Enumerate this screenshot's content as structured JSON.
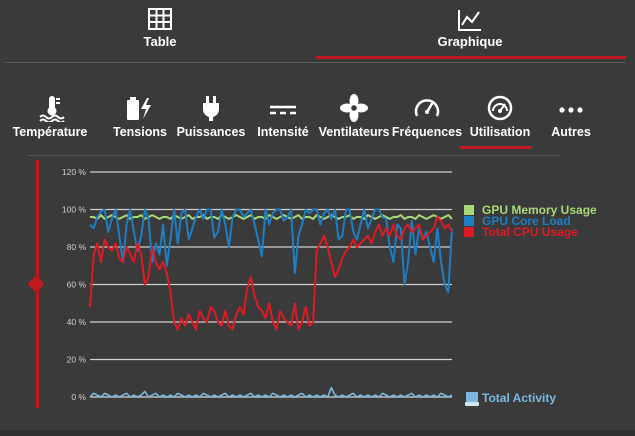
{
  "top_tabs": [
    {
      "label": "Table",
      "icon": "table-icon"
    },
    {
      "label": "Graphique",
      "icon": "chart-line-icon"
    }
  ],
  "active_top_tab": "Graphique",
  "categories": [
    {
      "label": "Température",
      "icon": "thermometer-icon"
    },
    {
      "label": "Tensions",
      "icon": "battery-bolt-icon"
    },
    {
      "label": "Puissances",
      "icon": "plug-icon"
    },
    {
      "label": "Intensité",
      "icon": "current-icon"
    },
    {
      "label": "Ventilateurs",
      "icon": "fan-icon"
    },
    {
      "label": "Fréquences",
      "icon": "gauge-icon"
    },
    {
      "label": "Utilisation",
      "icon": "speedometer-icon"
    },
    {
      "label": "Autres",
      "icon": "more-icon"
    }
  ],
  "active_category": "Utilisation",
  "colors": {
    "accent": "#c0181f",
    "gpu_memory": "#a8d877",
    "gpu_core": "#1f7dc2",
    "cpu_total": "#dd1b26",
    "activity": "#7ab8de"
  },
  "chart_data": {
    "type": "line",
    "y_ticks": [
      "120 %",
      "100 %",
      "80 %",
      "60 %",
      "40 %",
      "20 %",
      "0 %"
    ],
    "ylim": [
      0,
      120
    ],
    "grid": true,
    "legend_position": "right",
    "series": [
      {
        "name": "GPU Memory Usage",
        "color": "#a8d877",
        "values": [
          96,
          96,
          95,
          97,
          95,
          96,
          97,
          96,
          95,
          96,
          97,
          95,
          96,
          96,
          97,
          95,
          96,
          97,
          96,
          95,
          96,
          96,
          95,
          97,
          96,
          95,
          96,
          97,
          95,
          96,
          96,
          97,
          95,
          96,
          96,
          95,
          97,
          96,
          95,
          96,
          97,
          96,
          95,
          96,
          97,
          95,
          96,
          96,
          95,
          97,
          96,
          95,
          96,
          97,
          96,
          95,
          96,
          97,
          95,
          96,
          96,
          95,
          97,
          96,
          95,
          96,
          97,
          96,
          95,
          96,
          96,
          97,
          95,
          96,
          96,
          95,
          97,
          96,
          95,
          96,
          97,
          96,
          95,
          96,
          96,
          97,
          95,
          96,
          96,
          95,
          97,
          96,
          95,
          96,
          97,
          96,
          95,
          96,
          97,
          95
        ]
      },
      {
        "name": "GPU Core Load",
        "color": "#1f7dc2",
        "values": [
          92,
          90,
          96,
          99,
          100,
          88,
          95,
          100,
          86,
          72,
          92,
          100,
          88,
          78,
          86,
          100,
          95,
          72,
          82,
          76,
          92,
          70,
          84,
          100,
          82,
          98,
          100,
          84,
          90,
          96,
          100,
          95,
          100,
          100,
          85,
          88,
          100,
          92,
          80,
          96,
          100,
          100,
          96,
          98,
          100,
          92,
          84,
          75,
          100,
          92,
          98,
          100,
          100,
          94,
          96,
          100,
          66,
          86,
          92,
          100,
          98,
          100,
          100,
          92,
          98,
          100,
          95,
          100,
          84,
          86,
          100,
          100,
          88,
          84,
          92,
          100,
          90,
          95,
          100,
          100,
          96,
          95,
          80,
          72,
          92,
          90,
          60,
          72,
          94,
          76,
          90,
          84,
          88,
          80,
          72,
          90,
          72,
          60,
          56,
          90
        ]
      },
      {
        "name": "Total CPU Usage",
        "color": "#dd1b26",
        "values": [
          48,
          76,
          82,
          72,
          84,
          80,
          78,
          82,
          74,
          72,
          80,
          76,
          72,
          82,
          76,
          60,
          64,
          80,
          72,
          68,
          72,
          66,
          56,
          40,
          36,
          42,
          38,
          44,
          40,
          36,
          46,
          42,
          40,
          48,
          46,
          40,
          38,
          46,
          38,
          36,
          44,
          48,
          44,
          58,
          64,
          54,
          48,
          46,
          42,
          50,
          40,
          36,
          46,
          42,
          40,
          38,
          50,
          36,
          40,
          48,
          38,
          40,
          78,
          82,
          86,
          80,
          72,
          64,
          68,
          74,
          78,
          80,
          84,
          80,
          82,
          84,
          86,
          82,
          88,
          92,
          86,
          90,
          86,
          92,
          86,
          84,
          90,
          92,
          88,
          90,
          92,
          84,
          86,
          88,
          90,
          96,
          94,
          90,
          92,
          88
        ]
      },
      {
        "name": "Total Activity",
        "color": "#7ab8de",
        "values": [
          0,
          2,
          1,
          0,
          2,
          1,
          0,
          1,
          0,
          1,
          2,
          0,
          1,
          0,
          1,
          3,
          0,
          1,
          2,
          0,
          1,
          0,
          1,
          0,
          2,
          1,
          0,
          1,
          0,
          1,
          0,
          2,
          1,
          0,
          1,
          0,
          1,
          2,
          0,
          1,
          0,
          1,
          0,
          1,
          2,
          0,
          1,
          0,
          1,
          0,
          2,
          1,
          0,
          1,
          0,
          1,
          0,
          1,
          2,
          0,
          1,
          0,
          1,
          0,
          1,
          0,
          5,
          1,
          0,
          1,
          0,
          1,
          2,
          0,
          1,
          0,
          1,
          0,
          1,
          0,
          2,
          1,
          0,
          1,
          0,
          1,
          0,
          1,
          2,
          0,
          1,
          0,
          1,
          0,
          1,
          0,
          2,
          1,
          0,
          1
        ]
      }
    ]
  }
}
